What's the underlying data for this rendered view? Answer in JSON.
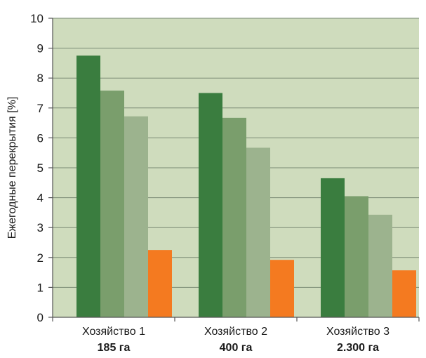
{
  "chart_data": {
    "type": "bar",
    "title": "",
    "xlabel": "",
    "ylabel": "Ежегодные перекрытия [%]",
    "ylim": [
      0,
      10
    ],
    "yticks": [
      0,
      1,
      2,
      3,
      4,
      5,
      6,
      7,
      8,
      9,
      10
    ],
    "grid": true,
    "legend": "none",
    "categories": [
      "Хозяйство 1",
      "Хозяйство 2",
      "Хозяйство 3"
    ],
    "category_sublabels": [
      "185 га",
      "400 га",
      "2.300 га"
    ],
    "series": [
      {
        "color": "#3a7d3f",
        "values": [
          8.75,
          7.5,
          4.65
        ]
      },
      {
        "color": "#7a9e6c",
        "values": [
          7.58,
          6.67,
          4.05
        ]
      },
      {
        "color": "#9cb38e",
        "values": [
          6.72,
          5.67,
          3.43
        ]
      },
      {
        "color": "#f47a20",
        "values": [
          2.25,
          1.92,
          1.57
        ]
      }
    ],
    "plot_background": "#cfdcbd",
    "gridline_color": "#7a8a74"
  }
}
